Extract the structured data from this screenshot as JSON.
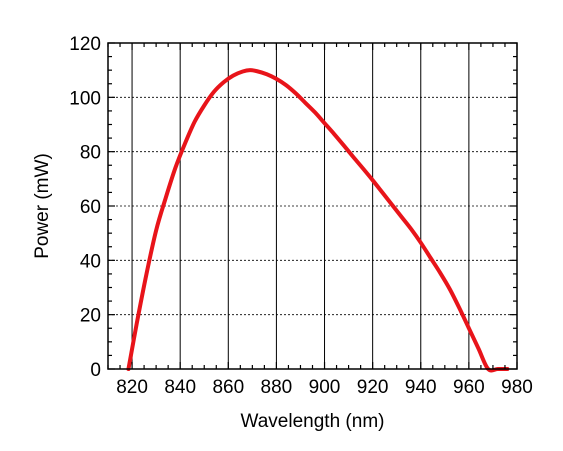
{
  "chart_data": {
    "type": "line",
    "title": "",
    "xlabel": "Wavelength (nm)",
    "ylabel": "Power (mW)",
    "xlim": [
      810,
      980
    ],
    "ylim": [
      0,
      120
    ],
    "x_ticks": [
      820,
      840,
      860,
      880,
      900,
      920,
      940,
      960,
      980
    ],
    "y_ticks": [
      0,
      20,
      40,
      60,
      80,
      100,
      120
    ],
    "x_minor_step": 5,
    "y_minor_step": 5,
    "grid": {
      "vertical": "solid",
      "horizontal": "dashed"
    },
    "series": [
      {
        "color": "#e8141a",
        "x": [
          818.5,
          822,
          826,
          830,
          834,
          838,
          842,
          846,
          850,
          854,
          858,
          862,
          866,
          869,
          872,
          876,
          880,
          884,
          888,
          892,
          896,
          900,
          904,
          908,
          912,
          916,
          920,
          924,
          928,
          932,
          936,
          940,
          944,
          948,
          952,
          956,
          960,
          964,
          968,
          972,
          976
        ],
        "y": [
          0,
          17,
          35,
          51,
          63,
          74,
          83,
          91,
          97,
          102,
          105.5,
          108,
          109.5,
          110,
          109.6,
          108.5,
          106.8,
          104.5,
          101.5,
          98,
          94.5,
          90.5,
          86.5,
          82.3,
          78,
          73.8,
          69.5,
          65,
          60.5,
          56,
          51.5,
          46.5,
          41,
          35.5,
          29.5,
          22.5,
          15,
          7.5,
          0,
          0,
          0
        ]
      }
    ]
  }
}
